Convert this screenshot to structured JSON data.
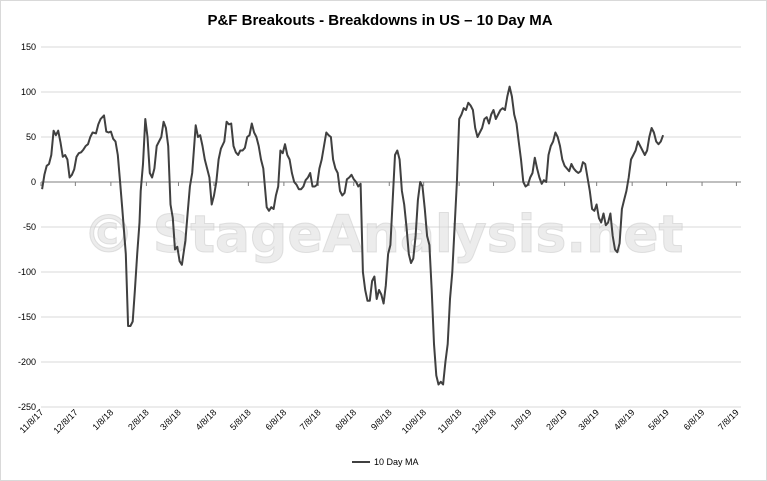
{
  "chart_data": {
    "type": "line",
    "title": "P&F Breakouts - Breakdowns in US – 10 Day MA",
    "watermark": "© StageAnalysis.net",
    "xlabel": "",
    "ylabel": "",
    "ylim": [
      -250,
      150
    ],
    "y_ticks": [
      150,
      100,
      50,
      0,
      -50,
      -100,
      -150,
      -200,
      -250
    ],
    "x_range": [
      "2017-11-08",
      "2019-07-12"
    ],
    "x_ticks": [
      "11/8/17",
      "12/8/17",
      "1/8/18",
      "2/8/18",
      "3/8/18",
      "4/8/18",
      "5/8/18",
      "6/8/18",
      "7/8/18",
      "8/8/18",
      "9/8/18",
      "10/8/18",
      "11/8/18",
      "12/8/18",
      "1/8/19",
      "2/8/19",
      "3/8/19",
      "4/8/19",
      "5/8/19",
      "6/8/19",
      "7/8/19"
    ],
    "grid": true,
    "legend_position": "bottom",
    "line_color": "#404040",
    "gridline_color": "#d9d9d9",
    "series": [
      {
        "name": "10 Day MA",
        "points": [
          [
            "2017-11-09",
            -8
          ],
          [
            "2017-11-11",
            8
          ],
          [
            "2017-11-13",
            18
          ],
          [
            "2017-11-15",
            20
          ],
          [
            "2017-11-17",
            30
          ],
          [
            "2017-11-19",
            57
          ],
          [
            "2017-11-21",
            52
          ],
          [
            "2017-11-23",
            57
          ],
          [
            "2017-11-25",
            44
          ],
          [
            "2017-11-27",
            28
          ],
          [
            "2017-11-29",
            30
          ],
          [
            "2017-12-01",
            25
          ],
          [
            "2017-12-03",
            5
          ],
          [
            "2017-12-05",
            8
          ],
          [
            "2017-12-07",
            14
          ],
          [
            "2017-12-09",
            28
          ],
          [
            "2017-12-11",
            32
          ],
          [
            "2017-12-13",
            33
          ],
          [
            "2017-12-15",
            36
          ],
          [
            "2017-12-17",
            40
          ],
          [
            "2017-12-19",
            42
          ],
          [
            "2017-12-21",
            50
          ],
          [
            "2017-12-23",
            55
          ],
          [
            "2017-12-26",
            54
          ],
          [
            "2017-12-28",
            64
          ],
          [
            "2017-12-30",
            70
          ],
          [
            "2018-01-02",
            74
          ],
          [
            "2018-01-04",
            56
          ],
          [
            "2018-01-06",
            55
          ],
          [
            "2018-01-08",
            56
          ],
          [
            "2018-01-10",
            48
          ],
          [
            "2018-01-12",
            45
          ],
          [
            "2018-01-14",
            30
          ],
          [
            "2018-01-16",
            0
          ],
          [
            "2018-01-18",
            -30
          ],
          [
            "2018-01-21",
            -80
          ],
          [
            "2018-01-23",
            -160
          ],
          [
            "2018-01-25",
            -160
          ],
          [
            "2018-01-27",
            -155
          ],
          [
            "2018-01-29",
            -120
          ],
          [
            "2018-01-31",
            -80
          ],
          [
            "2018-02-02",
            -45
          ],
          [
            "2018-02-03",
            -10
          ],
          [
            "2018-02-05",
            20
          ],
          [
            "2018-02-07",
            70
          ],
          [
            "2018-02-09",
            50
          ],
          [
            "2018-02-11",
            10
          ],
          [
            "2018-02-13",
            5
          ],
          [
            "2018-02-15",
            15
          ],
          [
            "2018-02-17",
            40
          ],
          [
            "2018-02-19",
            45
          ],
          [
            "2018-02-21",
            50
          ],
          [
            "2018-02-23",
            67
          ],
          [
            "2018-02-25",
            60
          ],
          [
            "2018-02-27",
            40
          ],
          [
            "2018-03-01",
            -25
          ],
          [
            "2018-03-03",
            -40
          ],
          [
            "2018-03-05",
            -75
          ],
          [
            "2018-03-07",
            -72
          ],
          [
            "2018-03-09",
            -88
          ],
          [
            "2018-03-11",
            -92
          ],
          [
            "2018-03-14",
            -65
          ],
          [
            "2018-03-16",
            -35
          ],
          [
            "2018-03-18",
            -5
          ],
          [
            "2018-03-20",
            10
          ],
          [
            "2018-03-23",
            63
          ],
          [
            "2018-03-25",
            50
          ],
          [
            "2018-03-27",
            52
          ],
          [
            "2018-03-29",
            40
          ],
          [
            "2018-03-31",
            25
          ],
          [
            "2018-04-02",
            15
          ],
          [
            "2018-04-04",
            5
          ],
          [
            "2018-04-06",
            -25
          ],
          [
            "2018-04-08",
            -15
          ],
          [
            "2018-04-10",
            0
          ],
          [
            "2018-04-12",
            25
          ],
          [
            "2018-04-14",
            37
          ],
          [
            "2018-04-17",
            45
          ],
          [
            "2018-04-19",
            67
          ],
          [
            "2018-04-21",
            64
          ],
          [
            "2018-04-23",
            65
          ],
          [
            "2018-04-25",
            40
          ],
          [
            "2018-04-27",
            33
          ],
          [
            "2018-04-29",
            30
          ],
          [
            "2018-05-01",
            35
          ],
          [
            "2018-05-03",
            35
          ],
          [
            "2018-05-05",
            38
          ],
          [
            "2018-05-07",
            50
          ],
          [
            "2018-05-09",
            52
          ],
          [
            "2018-05-11",
            65
          ],
          [
            "2018-05-13",
            55
          ],
          [
            "2018-05-15",
            50
          ],
          [
            "2018-05-17",
            40
          ],
          [
            "2018-05-19",
            25
          ],
          [
            "2018-05-21",
            15
          ],
          [
            "2018-05-24",
            -28
          ],
          [
            "2018-05-26",
            -32
          ],
          [
            "2018-05-28",
            -28
          ],
          [
            "2018-05-30",
            -30
          ],
          [
            "2018-06-01",
            -15
          ],
          [
            "2018-06-03",
            -5
          ],
          [
            "2018-06-05",
            35
          ],
          [
            "2018-06-07",
            32
          ],
          [
            "2018-06-09",
            42
          ],
          [
            "2018-06-11",
            30
          ],
          [
            "2018-06-13",
            25
          ],
          [
            "2018-06-15",
            10
          ],
          [
            "2018-06-17",
            0
          ],
          [
            "2018-06-19",
            -3
          ],
          [
            "2018-06-21",
            -8
          ],
          [
            "2018-06-23",
            -8
          ],
          [
            "2018-06-25",
            -5
          ],
          [
            "2018-06-27",
            2
          ],
          [
            "2018-06-29",
            5
          ],
          [
            "2018-07-01",
            10
          ],
          [
            "2018-07-03",
            -5
          ],
          [
            "2018-07-05",
            -5
          ],
          [
            "2018-07-07",
            -3
          ],
          [
            "2018-07-09",
            15
          ],
          [
            "2018-07-11",
            25
          ],
          [
            "2018-07-13",
            40
          ],
          [
            "2018-07-15",
            55
          ],
          [
            "2018-07-17",
            52
          ],
          [
            "2018-07-19",
            50
          ],
          [
            "2018-07-21",
            25
          ],
          [
            "2018-07-23",
            15
          ],
          [
            "2018-07-25",
            10
          ],
          [
            "2018-07-27",
            -10
          ],
          [
            "2018-07-29",
            -15
          ],
          [
            "2018-07-31",
            -12
          ],
          [
            "2018-08-02",
            3
          ],
          [
            "2018-08-04",
            5
          ],
          [
            "2018-08-06",
            8
          ],
          [
            "2018-08-08",
            3
          ],
          [
            "2018-08-10",
            0
          ],
          [
            "2018-08-12",
            -5
          ],
          [
            "2018-08-14",
            -2
          ],
          [
            "2018-08-16",
            -100
          ],
          [
            "2018-08-18",
            -120
          ],
          [
            "2018-08-20",
            -132
          ],
          [
            "2018-08-22",
            -132
          ],
          [
            "2018-08-24",
            -110
          ],
          [
            "2018-08-26",
            -105
          ],
          [
            "2018-08-28",
            -130
          ],
          [
            "2018-08-30",
            -120
          ],
          [
            "2018-09-01",
            -125
          ],
          [
            "2018-09-03",
            -135
          ],
          [
            "2018-09-05",
            -115
          ],
          [
            "2018-09-07",
            -80
          ],
          [
            "2018-09-09",
            -70
          ],
          [
            "2018-09-11",
            -20
          ],
          [
            "2018-09-13",
            30
          ],
          [
            "2018-09-15",
            35
          ],
          [
            "2018-09-17",
            25
          ],
          [
            "2018-09-19",
            -10
          ],
          [
            "2018-09-21",
            -25
          ],
          [
            "2018-09-23",
            -50
          ],
          [
            "2018-09-25",
            -80
          ],
          [
            "2018-09-27",
            -90
          ],
          [
            "2018-09-29",
            -85
          ],
          [
            "2018-10-01",
            -60
          ],
          [
            "2018-10-03",
            -20
          ],
          [
            "2018-10-05",
            0
          ],
          [
            "2018-10-07",
            -5
          ],
          [
            "2018-10-09",
            -30
          ],
          [
            "2018-10-11",
            -60
          ],
          [
            "2018-10-13",
            -70
          ],
          [
            "2018-10-15",
            -120
          ],
          [
            "2018-10-17",
            -180
          ],
          [
            "2018-10-19",
            -215
          ],
          [
            "2018-10-21",
            -225
          ],
          [
            "2018-10-23",
            -222
          ],
          [
            "2018-10-25",
            -225
          ],
          [
            "2018-10-27",
            -200
          ],
          [
            "2018-10-29",
            -180
          ],
          [
            "2018-10-31",
            -130
          ],
          [
            "2018-11-02",
            -100
          ],
          [
            "2018-11-04",
            -50
          ],
          [
            "2018-11-06",
            0
          ],
          [
            "2018-11-08",
            70
          ],
          [
            "2018-11-10",
            75
          ],
          [
            "2018-11-12",
            82
          ],
          [
            "2018-11-14",
            80
          ],
          [
            "2018-11-16",
            88
          ],
          [
            "2018-11-18",
            85
          ],
          [
            "2018-11-20",
            80
          ],
          [
            "2018-11-22",
            60
          ],
          [
            "2018-11-24",
            50
          ],
          [
            "2018-11-26",
            55
          ],
          [
            "2018-11-28",
            60
          ],
          [
            "2018-11-30",
            70
          ],
          [
            "2018-12-02",
            72
          ],
          [
            "2018-12-04",
            65
          ],
          [
            "2018-12-06",
            75
          ],
          [
            "2018-12-08",
            80
          ],
          [
            "2018-12-10",
            70
          ],
          [
            "2018-12-12",
            75
          ],
          [
            "2018-12-14",
            80
          ],
          [
            "2018-12-16",
            82
          ],
          [
            "2018-12-18",
            80
          ],
          [
            "2018-12-20",
            95
          ],
          [
            "2018-12-22",
            106
          ],
          [
            "2018-12-24",
            95
          ],
          [
            "2018-12-26",
            75
          ],
          [
            "2018-12-28",
            65
          ],
          [
            "2018-12-30",
            45
          ],
          [
            "2019-01-01",
            25
          ],
          [
            "2019-01-03",
            0
          ],
          [
            "2019-01-05",
            -5
          ],
          [
            "2019-01-07",
            -3
          ],
          [
            "2019-01-09",
            5
          ],
          [
            "2019-01-11",
            10
          ],
          [
            "2019-01-13",
            27
          ],
          [
            "2019-01-15",
            15
          ],
          [
            "2019-01-17",
            5
          ],
          [
            "2019-01-19",
            -2
          ],
          [
            "2019-01-21",
            2
          ],
          [
            "2019-01-23",
            0
          ],
          [
            "2019-01-25",
            30
          ],
          [
            "2019-01-27",
            40
          ],
          [
            "2019-01-29",
            45
          ],
          [
            "2019-01-31",
            55
          ],
          [
            "2019-02-02",
            50
          ],
          [
            "2019-02-04",
            40
          ],
          [
            "2019-02-06",
            25
          ],
          [
            "2019-02-08",
            18
          ],
          [
            "2019-02-10",
            15
          ],
          [
            "2019-02-12",
            12
          ],
          [
            "2019-02-14",
            20
          ],
          [
            "2019-02-16",
            15
          ],
          [
            "2019-02-18",
            12
          ],
          [
            "2019-02-20",
            10
          ],
          [
            "2019-02-22",
            12
          ],
          [
            "2019-02-24",
            22
          ],
          [
            "2019-02-26",
            20
          ],
          [
            "2019-02-28",
            5
          ],
          [
            "2019-03-02",
            -10
          ],
          [
            "2019-03-04",
            -30
          ],
          [
            "2019-03-06",
            -32
          ],
          [
            "2019-03-08",
            -25
          ],
          [
            "2019-03-10",
            -40
          ],
          [
            "2019-03-12",
            -45
          ],
          [
            "2019-03-14",
            -35
          ],
          [
            "2019-03-16",
            -48
          ],
          [
            "2019-03-18",
            -45
          ],
          [
            "2019-03-20",
            -35
          ],
          [
            "2019-03-22",
            -60
          ],
          [
            "2019-03-24",
            -75
          ],
          [
            "2019-03-26",
            -78
          ],
          [
            "2019-03-28",
            -68
          ],
          [
            "2019-03-30",
            -30
          ],
          [
            "2019-04-01",
            -20
          ],
          [
            "2019-04-03",
            -10
          ],
          [
            "2019-04-05",
            5
          ],
          [
            "2019-04-07",
            25
          ],
          [
            "2019-04-09",
            30
          ],
          [
            "2019-04-11",
            35
          ],
          [
            "2019-04-13",
            45
          ],
          [
            "2019-04-15",
            40
          ],
          [
            "2019-04-17",
            35
          ],
          [
            "2019-04-19",
            30
          ],
          [
            "2019-04-21",
            35
          ],
          [
            "2019-04-23",
            50
          ],
          [
            "2019-04-25",
            60
          ],
          [
            "2019-04-27",
            55
          ],
          [
            "2019-04-29",
            45
          ],
          [
            "2019-05-01",
            42
          ],
          [
            "2019-05-03",
            45
          ],
          [
            "2019-05-05",
            52
          ]
        ]
      }
    ]
  }
}
